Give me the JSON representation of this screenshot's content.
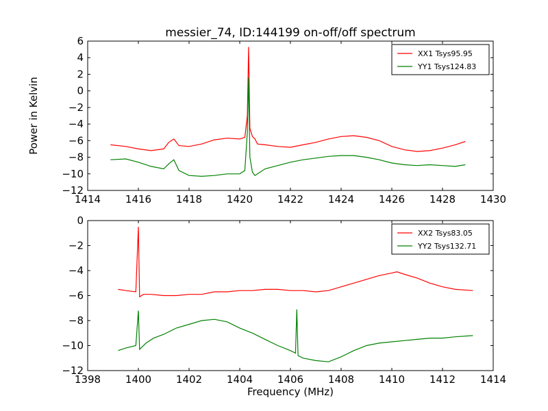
{
  "chart_data": [
    {
      "type": "line",
      "title": "messier_74, ID:144199 on-off/off spectrum",
      "xlabel": "",
      "ylabel": "Power in Kelvin",
      "xlim": [
        1414,
        1430
      ],
      "ylim": [
        -12,
        6
      ],
      "xticks": [
        "1414",
        "1416",
        "1418",
        "1420",
        "1422",
        "1424",
        "1426",
        "1428",
        "1430"
      ],
      "yticks": [
        "6",
        "4",
        "2",
        "0",
        "−2",
        "−4",
        "−6",
        "−8",
        "−10",
        "−12"
      ],
      "legend_position": "top-right",
      "series": [
        {
          "name": "XX1 Tsys95.95",
          "color": "#ff0000",
          "x": [
            1414.9,
            1415.5,
            1416,
            1416.5,
            1417,
            1417.2,
            1417.4,
            1417.6,
            1418,
            1418.5,
            1419,
            1419.5,
            1420,
            1420.2,
            1420.3,
            1420.35,
            1420.4,
            1420.5,
            1420.6,
            1420.7,
            1421,
            1421.5,
            1422,
            1422.5,
            1423,
            1423.5,
            1424,
            1424.5,
            1425,
            1425.5,
            1426,
            1426.5,
            1427,
            1427.5,
            1428,
            1428.5,
            1428.9
          ],
          "values": [
            -6.5,
            -6.7,
            -7.0,
            -7.2,
            -7.0,
            -6.2,
            -5.8,
            -6.6,
            -6.7,
            -6.4,
            -5.9,
            -5.7,
            -5.8,
            -5.6,
            -3.0,
            5.3,
            -4.5,
            -5.5,
            -5.8,
            -6.4,
            -6.5,
            -6.7,
            -6.8,
            -6.5,
            -6.2,
            -5.8,
            -5.5,
            -5.4,
            -5.6,
            -6.0,
            -6.7,
            -7.1,
            -7.3,
            -7.2,
            -6.9,
            -6.5,
            -6.1
          ]
        },
        {
          "name": "YY1 Tsys124.83",
          "color": "#008000",
          "x": [
            1414.9,
            1415.5,
            1416,
            1416.5,
            1417,
            1417.2,
            1417.4,
            1417.6,
            1418,
            1418.5,
            1419,
            1419.5,
            1420,
            1420.2,
            1420.3,
            1420.35,
            1420.4,
            1420.5,
            1420.6,
            1420.7,
            1421,
            1421.5,
            1422,
            1422.5,
            1423,
            1423.5,
            1424,
            1424.5,
            1425,
            1425.5,
            1426,
            1426.5,
            1427,
            1427.5,
            1428,
            1428.5,
            1428.9
          ],
          "values": [
            -8.3,
            -8.2,
            -8.6,
            -9.1,
            -9.4,
            -8.8,
            -8.3,
            -9.6,
            -10.2,
            -10.3,
            -10.2,
            -10.0,
            -10.0,
            -9.6,
            -5.0,
            1.6,
            -8.0,
            -9.8,
            -10.2,
            -10.0,
            -9.4,
            -9.0,
            -8.6,
            -8.3,
            -8.1,
            -7.9,
            -7.8,
            -7.8,
            -8.0,
            -8.3,
            -8.7,
            -8.9,
            -9.0,
            -8.9,
            -9.0,
            -9.1,
            -8.9
          ]
        }
      ]
    },
    {
      "type": "line",
      "title": "",
      "xlabel": "Frequency (MHz)",
      "ylabel": "",
      "xlim": [
        1398,
        1414
      ],
      "ylim": [
        -12,
        0
      ],
      "xticks": [
        "1398",
        "1400",
        "1402",
        "1404",
        "1406",
        "1408",
        "1410",
        "1412",
        "1414"
      ],
      "yticks": [
        "0",
        "−2",
        "−4",
        "−6",
        "−8",
        "−10",
        "−12"
      ],
      "legend_position": "top-right",
      "series": [
        {
          "name": "XX2 Tsys83.05",
          "color": "#ff0000",
          "x": [
            1399.2,
            1399.5,
            1399.9,
            1400.0,
            1400.05,
            1400.2,
            1400.5,
            1401,
            1401.5,
            1402,
            1402.5,
            1403,
            1403.5,
            1404,
            1404.5,
            1405,
            1405.5,
            1406,
            1406.5,
            1407,
            1407.5,
            1408,
            1408.5,
            1409,
            1409.5,
            1410,
            1410.2,
            1410.5,
            1411,
            1411.5,
            1412,
            1412.5,
            1413.2
          ],
          "values": [
            -5.5,
            -5.6,
            -5.7,
            -0.5,
            -6.1,
            -5.9,
            -5.9,
            -6.0,
            -6.0,
            -5.9,
            -5.9,
            -5.7,
            -5.7,
            -5.6,
            -5.6,
            -5.5,
            -5.5,
            -5.6,
            -5.6,
            -5.7,
            -5.6,
            -5.3,
            -5.0,
            -4.7,
            -4.4,
            -4.2,
            -4.1,
            -4.3,
            -4.6,
            -5.0,
            -5.3,
            -5.5,
            -5.6
          ]
        },
        {
          "name": "YY2 Tsys132.71",
          "color": "#008000",
          "x": [
            1399.2,
            1399.5,
            1399.9,
            1400.0,
            1400.05,
            1400.3,
            1400.6,
            1401,
            1401.5,
            1402,
            1402.5,
            1403,
            1403.5,
            1404,
            1404.5,
            1405,
            1405.5,
            1406,
            1406.2,
            1406.25,
            1406.3,
            1406.5,
            1407,
            1407.5,
            1408,
            1408.5,
            1409,
            1409.5,
            1410,
            1410.5,
            1411,
            1411.5,
            1412,
            1412.5,
            1413.2
          ],
          "values": [
            -10.4,
            -10.2,
            -10.0,
            -7.2,
            -10.3,
            -9.8,
            -9.4,
            -9.1,
            -8.6,
            -8.3,
            -8.0,
            -7.9,
            -8.1,
            -8.6,
            -9.0,
            -9.5,
            -10.0,
            -10.4,
            -10.6,
            -7.1,
            -10.8,
            -11.0,
            -11.2,
            -11.3,
            -10.9,
            -10.4,
            -10.0,
            -9.8,
            -9.7,
            -9.6,
            -9.5,
            -9.4,
            -9.4,
            -9.3,
            -9.2
          ]
        }
      ]
    }
  ]
}
